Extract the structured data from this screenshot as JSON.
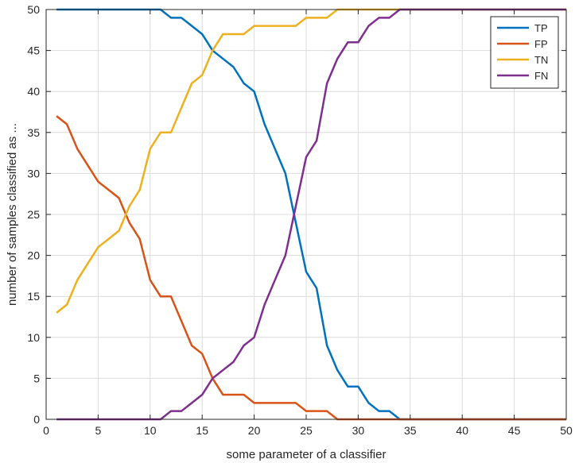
{
  "chart_data": {
    "type": "line",
    "title": "",
    "xlabel": "some parameter of a classifier",
    "ylabel": "number of samples classified as ...",
    "xlim": [
      0,
      50
    ],
    "ylim": [
      0,
      50
    ],
    "xticks": [
      0,
      5,
      10,
      15,
      20,
      25,
      30,
      35,
      40,
      45,
      50
    ],
    "yticks": [
      0,
      5,
      10,
      15,
      20,
      25,
      30,
      35,
      40,
      45,
      50
    ],
    "grid": true,
    "legend_position": "top-right",
    "x": [
      1,
      2,
      3,
      4,
      5,
      6,
      7,
      8,
      9,
      10,
      11,
      12,
      13,
      14,
      15,
      16,
      17,
      18,
      19,
      20,
      21,
      22,
      23,
      24,
      25,
      26,
      27,
      28,
      29,
      30,
      31,
      32,
      33,
      34,
      35,
      36,
      37,
      38,
      39,
      40,
      41,
      42,
      43,
      44,
      45,
      46,
      47,
      48,
      49,
      50
    ],
    "series": [
      {
        "name": "TP",
        "color": "#0072BD",
        "values": [
          50,
          50,
          50,
          50,
          50,
          50,
          50,
          50,
          50,
          50,
          50,
          49,
          49,
          48,
          47,
          45,
          44,
          43,
          41,
          40,
          36,
          33,
          30,
          24,
          18,
          16,
          9,
          6,
          4,
          4,
          2,
          1,
          1,
          0,
          0,
          0,
          0,
          0,
          0,
          0,
          0,
          0,
          0,
          0,
          0,
          0,
          0,
          0,
          0,
          0
        ]
      },
      {
        "name": "FP",
        "color": "#D95319",
        "values": [
          37,
          36,
          33,
          31,
          29,
          28,
          27,
          24,
          22,
          17,
          15,
          15,
          12,
          9,
          8,
          5,
          3,
          3,
          3,
          2,
          2,
          2,
          2,
          2,
          1,
          1,
          1,
          0,
          0,
          0,
          0,
          0,
          0,
          0,
          0,
          0,
          0,
          0,
          0,
          0,
          0,
          0,
          0,
          0,
          0,
          0,
          0,
          0,
          0,
          0
        ]
      },
      {
        "name": "TN",
        "color": "#EDB120",
        "values": [
          13,
          14,
          17,
          19,
          21,
          22,
          23,
          26,
          28,
          33,
          35,
          35,
          38,
          41,
          42,
          45,
          47,
          47,
          47,
          48,
          48,
          48,
          48,
          48,
          49,
          49,
          49,
          50,
          50,
          50,
          50,
          50,
          50,
          50,
          50,
          50,
          50,
          50,
          50,
          50,
          50,
          50,
          50,
          50,
          50,
          50,
          50,
          50,
          50,
          50
        ]
      },
      {
        "name": "FN",
        "color": "#7E2F8E",
        "values": [
          0,
          0,
          0,
          0,
          0,
          0,
          0,
          0,
          0,
          0,
          0,
          1,
          1,
          2,
          3,
          5,
          6,
          7,
          9,
          10,
          14,
          17,
          20,
          26,
          32,
          34,
          41,
          44,
          46,
          46,
          48,
          49,
          49,
          50,
          50,
          50,
          50,
          50,
          50,
          50,
          50,
          50,
          50,
          50,
          50,
          50,
          50,
          50,
          50,
          50
        ]
      }
    ]
  }
}
